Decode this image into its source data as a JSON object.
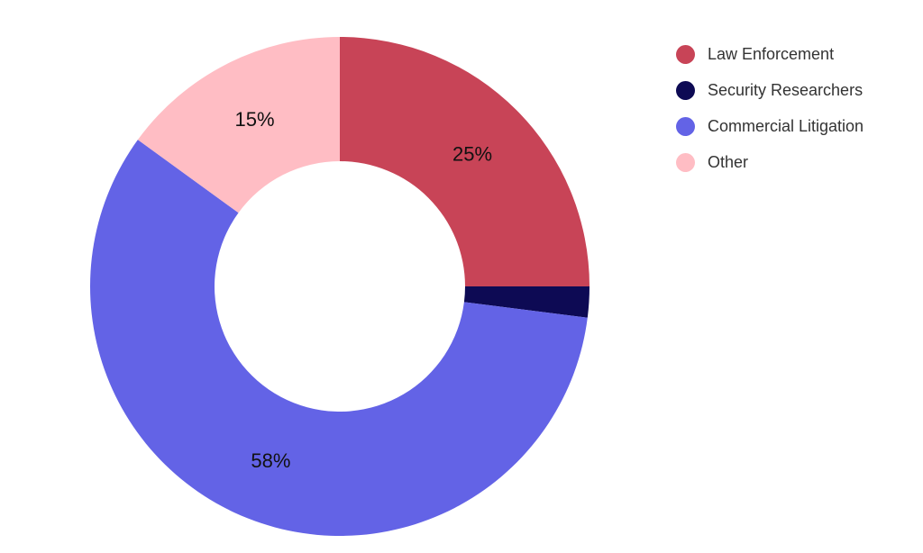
{
  "chart_data": {
    "type": "pie",
    "donut": true,
    "start_angle": "top, clockwise",
    "categories": [
      "Law Enforcement",
      "Security Researchers",
      "Commercial Litigation",
      "Other"
    ],
    "values": [
      25,
      2,
      58,
      15
    ],
    "data_labels": [
      "25%",
      "",
      "58%",
      "15%"
    ],
    "colors": [
      "#C84457",
      "#0D0A54",
      "#6363E6",
      "#FFBDC4"
    ],
    "legend_placement": "top-right"
  }
}
